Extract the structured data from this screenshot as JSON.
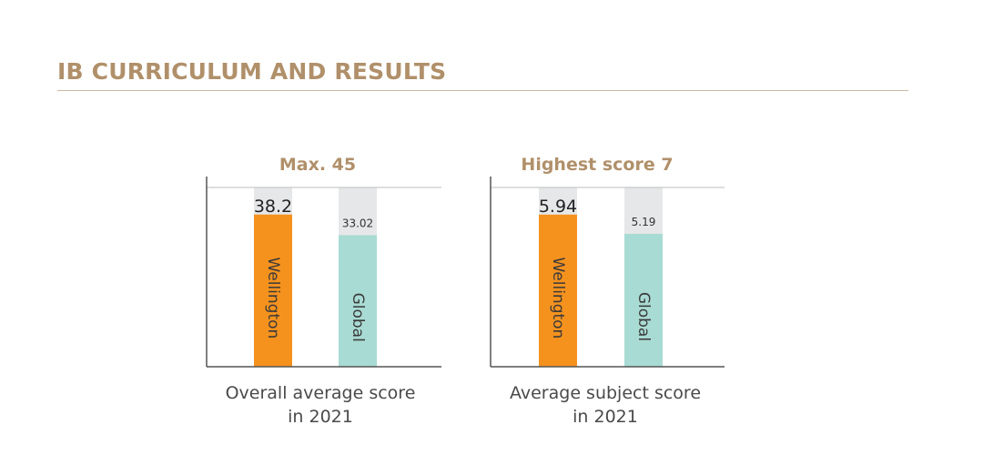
{
  "page": {
    "title": "IB CURRICULUM AND RESULTS"
  },
  "colors": {
    "title": "#b0906a",
    "wellington": "#f5921e",
    "global": "#a8dbd3",
    "max_band": "#e6e7e8",
    "axis": "#555555",
    "caption": "#4a4a4a"
  },
  "chart_data": [
    {
      "type": "bar",
      "title": "Max. 45",
      "caption": [
        "Overall average score",
        "in 2021"
      ],
      "categories": [
        "Wellington",
        "Global"
      ],
      "values": [
        38.2,
        33.02
      ],
      "value_labels": [
        "38.2",
        "33.02"
      ],
      "ylim": [
        0,
        45
      ],
      "max_value": 45,
      "grid": false,
      "xlabel": "",
      "ylabel": ""
    },
    {
      "type": "bar",
      "title": "Highest score 7",
      "caption": [
        "Average subject score",
        "in 2021"
      ],
      "categories": [
        "Wellington",
        "Global"
      ],
      "values": [
        5.94,
        5.19
      ],
      "value_labels": [
        "5.94",
        "5.19"
      ],
      "ylim": [
        0,
        7
      ],
      "max_value": 7,
      "grid": false,
      "xlabel": "",
      "ylabel": ""
    }
  ]
}
